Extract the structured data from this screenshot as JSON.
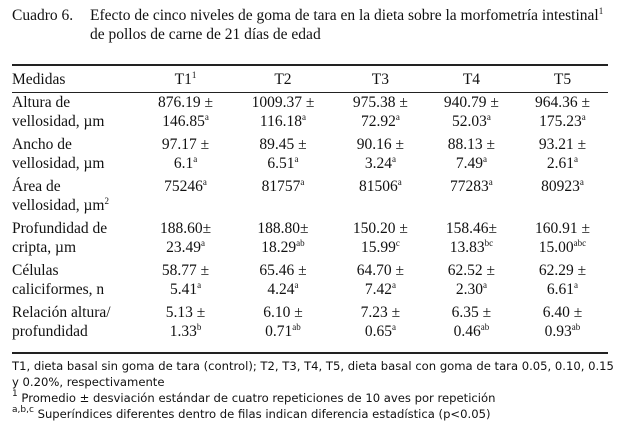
{
  "caption": {
    "number": "Cuadro 6.",
    "line1": "Efecto de cinco niveles de goma de tara en la dieta sobre la morfometría intestinal",
    "line1_sup": "1",
    "line2": "de pollos de carne de 21 días de edad"
  },
  "table": {
    "headers": [
      {
        "text": "Medidas",
        "sup": ""
      },
      {
        "text": "T1",
        "sup": "1"
      },
      {
        "text": "T2",
        "sup": ""
      },
      {
        "text": "T3",
        "sup": ""
      },
      {
        "text": "T4",
        "sup": ""
      },
      {
        "text": "T5",
        "sup": ""
      }
    ],
    "rows": [
      {
        "label1": "Altura de",
        "label2": "vellosidad, µm",
        "label_sup": "",
        "cells": [
          {
            "mean": "876.19 ±",
            "sd": "146.85",
            "sup": "a"
          },
          {
            "mean": "1009.37 ±",
            "sd": "116.18",
            "sup": "a"
          },
          {
            "mean": "975.38 ±",
            "sd": "72.92",
            "sup": "a"
          },
          {
            "mean": "940.79 ±",
            "sd": "52.03",
            "sup": "a"
          },
          {
            "mean": "964.36 ±",
            "sd": "175.23",
            "sup": "a"
          }
        ]
      },
      {
        "label1": "Ancho de",
        "label2": "vellosidad, µm",
        "label_sup": "",
        "cells": [
          {
            "mean": "97.17 ±",
            "sd": "6.1",
            "sup": "a"
          },
          {
            "mean": "89.45 ±",
            "sd": "6.51",
            "sup": "a"
          },
          {
            "mean": "90.16 ±",
            "sd": "3.24",
            "sup": "a"
          },
          {
            "mean": "88.13 ±",
            "sd": "7.49",
            "sup": "a"
          },
          {
            "mean": "93.21 ±",
            "sd": "2.61",
            "sup": "a"
          }
        ]
      },
      {
        "label1": "Área de",
        "label2": "vellosidad, µm",
        "label_sup": "2",
        "cells": [
          {
            "mean": "75246",
            "sd": "",
            "sup": "a"
          },
          {
            "mean": "81757",
            "sd": "",
            "sup": "a"
          },
          {
            "mean": "81506",
            "sd": "",
            "sup": "a"
          },
          {
            "mean": "77283",
            "sd": "",
            "sup": "a"
          },
          {
            "mean": "80923",
            "sd": "",
            "sup": "a"
          }
        ]
      },
      {
        "label1": "Profundidad de",
        "label2": "cripta, µm",
        "label_sup": "",
        "cells": [
          {
            "mean": "188.60±",
            "sd": "23.49",
            "sup": "a"
          },
          {
            "mean": "188.80±",
            "sd": "18.29",
            "sup": "ab"
          },
          {
            "mean": "150.20 ±",
            "sd": "15.99",
            "sup": "c"
          },
          {
            "mean": "158.46±",
            "sd": "13.83",
            "sup": "bc"
          },
          {
            "mean": "160.91 ±",
            "sd": "15.00",
            "sup": "abc"
          }
        ]
      },
      {
        "label1": "Células",
        "label2": "caliciformes, n",
        "label_sup": "",
        "cells": [
          {
            "mean": "58.77 ±",
            "sd": "5.41",
            "sup": "a"
          },
          {
            "mean": "65.46 ±",
            "sd": "4.24",
            "sup": "a"
          },
          {
            "mean": "64.70 ±",
            "sd": "7.42",
            "sup": "a"
          },
          {
            "mean": "62.52 ±",
            "sd": "2.30",
            "sup": "a"
          },
          {
            "mean": "62.29 ±",
            "sd": "6.61",
            "sup": "a"
          }
        ]
      },
      {
        "label1": "Relación altura/",
        "label2": "profundidad",
        "label_sup": "",
        "cells": [
          {
            "mean": "5.13 ±",
            "sd": "1.33",
            "sup": "b"
          },
          {
            "mean": "6.10 ±",
            "sd": "0.71",
            "sup": "ab"
          },
          {
            "mean": "7.23 ±",
            "sd": "0.65",
            "sup": "a"
          },
          {
            "mean": "6.35 ±",
            "sd": "0.46",
            "sup": "ab"
          },
          {
            "mean": "6.40 ±",
            "sd": "0.93",
            "sup": "ab"
          }
        ]
      }
    ]
  },
  "notes": {
    "note1": "T1, dieta basal sin goma de tara (control); T2, T3, T4, T5, dieta basal con goma de tara 0.05, 0.10, 0.15 y 0.20%, respectivamente",
    "note2_sup": "1",
    "note2": " Promedio ± desviación estándar de cuatro repeticiones de 10 aves por repetición",
    "note3_sup": "a,b,c",
    "note3": " Superíndices diferentes dentro de filas indican diferencia estadística (p<0.05)"
  }
}
